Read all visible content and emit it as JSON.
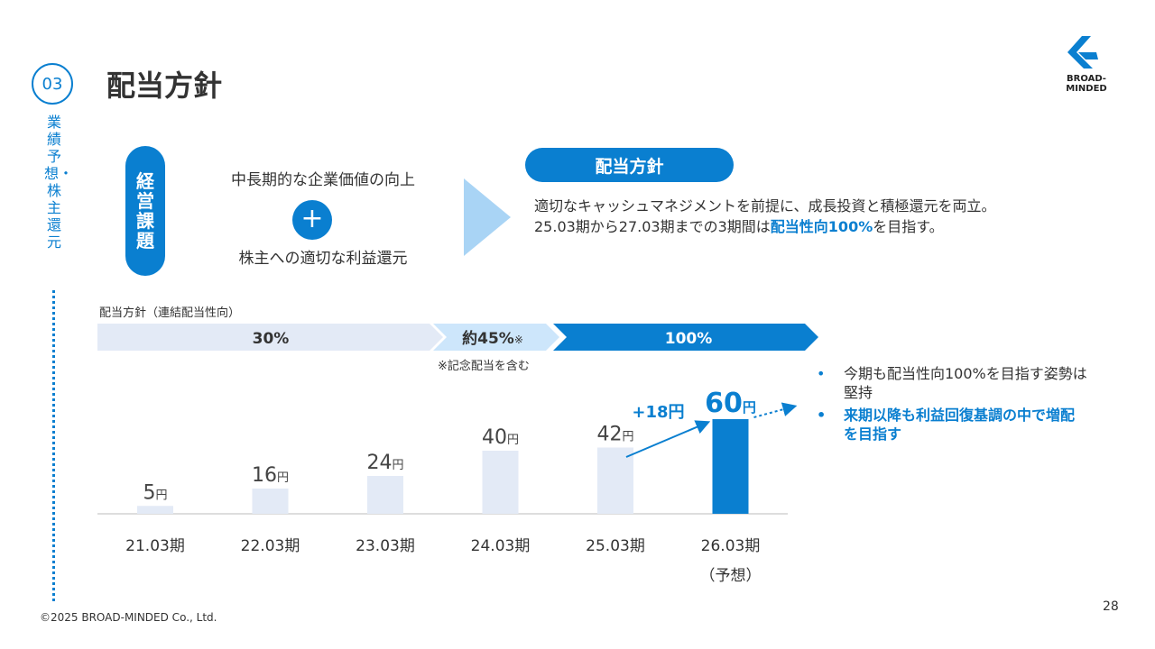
{
  "section": {
    "number": "03",
    "label": "業績予想・株主還元"
  },
  "title": "配当方針",
  "logo": {
    "text": "BROAD-MINDED"
  },
  "issues": {
    "label": "経営課題",
    "item1": "中長期的な企業価値の向上",
    "plus": "+",
    "item2": "株主への適切な利益還元"
  },
  "policy": {
    "label": "配当方針",
    "line1": "適切なキャッシュマネジメントを前提に、成長投資と積極還元を両立。",
    "line2_pre": "25.03期から27.03期までの3期間は",
    "line2_highlight": "配当性向100%",
    "line2_post": "を目指す。"
  },
  "band": {
    "label": "配当方針（連結配当性向）",
    "segments": [
      "30%",
      "約45%",
      "100%"
    ],
    "mark": "※",
    "note": "※記念配当を含む"
  },
  "chart_data": {
    "type": "bar",
    "categories": [
      "21.03期",
      "22.03期",
      "23.03期",
      "24.03期",
      "25.03期",
      "26.03期"
    ],
    "category_sub": [
      "",
      "",
      "",
      "",
      "",
      "（予想）"
    ],
    "values": [
      5,
      16,
      24,
      40,
      42,
      60
    ],
    "unit": "円",
    "highlight_index": 5,
    "annotation": "+18円",
    "colors": {
      "bar": "#e3eaf6",
      "highlight": "#0a7fd0",
      "accent": "#0a7fd0"
    }
  },
  "bullets": [
    {
      "text": "今期も配当性向100%を目指す姿勢は堅持",
      "strong": false
    },
    {
      "text": "来期以降も利益回復基調の中で増配を目指す",
      "strong": true
    }
  ],
  "footer": {
    "copyright": "©2025 BROAD-MINDED Co., Ltd.",
    "page": "28"
  }
}
